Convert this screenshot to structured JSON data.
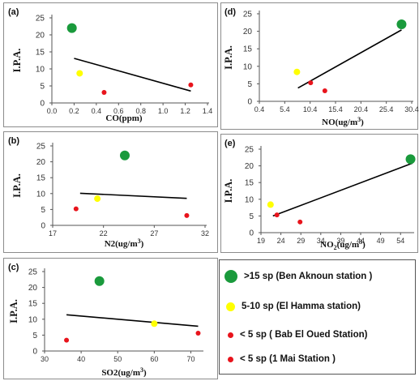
{
  "colors": {
    "ben_aknoun": "#1a9a3c",
    "el_hamma": "#ffff00",
    "bab_el_oued": "#e8141c",
    "mai_1": "#e8141c",
    "trend": "#000000"
  },
  "legend": [
    {
      "label": ">15 sp (Ben Aknoun station )",
      "color": "#1a9a3c",
      "size": "large"
    },
    {
      "label": "5-10 sp (El Hamma station)",
      "color": "#ffff00",
      "size": "medium"
    },
    {
      "label": "< 5 sp ( Bab El Oued Station)",
      "color": "#e8141c",
      "size": "small"
    },
    {
      "label": "< 5 sp (1 Mai Station )",
      "color": "#e8141c",
      "size": "small"
    }
  ],
  "chart_data": [
    {
      "id": "a",
      "panel_label": "(a)",
      "type": "scatter",
      "xlabel": "CO(ppm)",
      "xlabel_sup": "",
      "xlabel_suffix": "",
      "ylabel": "I.P.A.",
      "xticks": [
        "0.0",
        "0.2",
        "0.4",
        "0.6",
        "0.8",
        "1.0",
        "1.2",
        "1.4"
      ],
      "xlim": [
        0,
        1.4
      ],
      "yticks": [
        "0",
        "5",
        "10",
        "15",
        "20",
        "25"
      ],
      "ylim": [
        0,
        25
      ],
      "points": [
        {
          "station": "Ben Aknoun",
          "x": 0.18,
          "y": 22,
          "color": "#1a9a3c",
          "size": "large"
        },
        {
          "station": "El Hamma",
          "x": 0.25,
          "y": 8.7,
          "color": "#ffff00",
          "size": "medium"
        },
        {
          "station": "Bab El Oued",
          "x": 0.47,
          "y": 3.1,
          "color": "#e8141c",
          "size": "small"
        },
        {
          "station": "1 Mai",
          "x": 1.25,
          "y": 5.3,
          "color": "#e8141c",
          "size": "small"
        }
      ],
      "trend": [
        [
          0.2,
          13.1
        ],
        [
          1.25,
          3.5
        ]
      ]
    },
    {
      "id": "d",
      "panel_label": "(d)",
      "type": "scatter",
      "xlabel": "NO(ug/m",
      "xlabel_sup": "3",
      "xlabel_suffix": ")",
      "ylabel": "I.P.A.",
      "xticks": [
        "0.4",
        "5.4",
        "10.4",
        "15.4",
        "20.4",
        "25.4",
        "30.4"
      ],
      "xlim": [
        0.4,
        30.4
      ],
      "yticks": [
        "0",
        "5",
        "10",
        "15",
        "20",
        "25"
      ],
      "ylim": [
        0,
        25
      ],
      "points": [
        {
          "station": "Ben Aknoun",
          "x": 28.4,
          "y": 22,
          "color": "#1a9a3c",
          "size": "large"
        },
        {
          "station": "El Hamma",
          "x": 7.8,
          "y": 8.4,
          "color": "#ffff00",
          "size": "medium"
        },
        {
          "station": "Bab El Oued",
          "x": 10.5,
          "y": 5.3,
          "color": "#e8141c",
          "size": "small"
        },
        {
          "station": "1 Mai",
          "x": 13.3,
          "y": 3.0,
          "color": "#e8141c",
          "size": "small"
        }
      ],
      "trend": [
        [
          8.0,
          3.8
        ],
        [
          28.4,
          20.4
        ]
      ]
    },
    {
      "id": "b",
      "panel_label": "(b)",
      "type": "scatter",
      "xlabel": "N2(ug/m",
      "xlabel_sup": "3",
      "xlabel_suffix": ")",
      "ylabel": "I.P.A.",
      "xticks": [
        "17",
        "22",
        "27",
        "32"
      ],
      "xlim": [
        17,
        32
      ],
      "yticks": [
        "0",
        "5",
        "10",
        "15",
        "20",
        "25"
      ],
      "ylim": [
        0,
        25
      ],
      "points": [
        {
          "station": "Ben Aknoun",
          "x": 24.1,
          "y": 22,
          "color": "#1a9a3c",
          "size": "large"
        },
        {
          "station": "El Hamma",
          "x": 21.4,
          "y": 8.4,
          "color": "#ffff00",
          "size": "medium"
        },
        {
          "station": "Bab El Oued",
          "x": 19.3,
          "y": 5.2,
          "color": "#e8141c",
          "size": "small"
        },
        {
          "station": "1 Mai",
          "x": 30.2,
          "y": 3.1,
          "color": "#e8141c",
          "size": "small"
        }
      ],
      "trend": [
        [
          19.7,
          10.1
        ],
        [
          30.2,
          8.5
        ]
      ]
    },
    {
      "id": "e",
      "panel_label": "(e)",
      "type": "scatter",
      "xlabel": "NO",
      "xlabel_sub": "2",
      "xlabel_mid": "(ug/m",
      "xlabel_sup": "3",
      "xlabel_suffix": ")",
      "ylabel": "I.P.A.",
      "xticks": [
        "19",
        "24",
        "29",
        "34",
        "39",
        "44",
        "49",
        "54"
      ],
      "xlim": [
        19,
        57
      ],
      "yticks": [
        "0",
        "5",
        "10",
        "15",
        "20",
        "25"
      ],
      "ylim": [
        0,
        25
      ],
      "points": [
        {
          "station": "Ben Aknoun",
          "x": 56.5,
          "y": 22,
          "color": "#1a9a3c",
          "size": "large"
        },
        {
          "station": "El Hamma",
          "x": 21.4,
          "y": 8.4,
          "color": "#ffff00",
          "size": "medium"
        },
        {
          "station": "Bab El Oued",
          "x": 23.0,
          "y": 5.3,
          "color": "#e8141c",
          "size": "small"
        },
        {
          "station": "1 Mai",
          "x": 28.8,
          "y": 3.2,
          "color": "#e8141c",
          "size": "small"
        }
      ],
      "trend": [
        [
          22.0,
          5.0
        ],
        [
          57.0,
          20.8
        ]
      ]
    },
    {
      "id": "c",
      "panel_label": "(c)",
      "type": "scatter",
      "xlabel": "SO2(ug/m",
      "xlabel_sup": "3",
      "xlabel_suffix": ")",
      "ylabel": "I.P.A.",
      "xticks": [
        "30",
        "40",
        "50",
        "60",
        "70"
      ],
      "xlim": [
        30,
        73
      ],
      "yticks": [
        "0",
        "5",
        "10",
        "15",
        "20",
        "25"
      ],
      "ylim": [
        0,
        25
      ],
      "points": [
        {
          "station": "Ben Aknoun",
          "x": 45,
          "y": 22,
          "color": "#1a9a3c",
          "size": "large"
        },
        {
          "station": "El Hamma",
          "x": 60,
          "y": 8.6,
          "color": "#ffff00",
          "size": "medium"
        },
        {
          "station": "Bab El Oued",
          "x": 36,
          "y": 3.4,
          "color": "#e8141c",
          "size": "small"
        },
        {
          "station": "1 Mai",
          "x": 72,
          "y": 5.6,
          "color": "#e8141c",
          "size": "small"
        }
      ],
      "trend": [
        [
          36,
          11.4
        ],
        [
          72,
          7.8
        ]
      ]
    }
  ]
}
